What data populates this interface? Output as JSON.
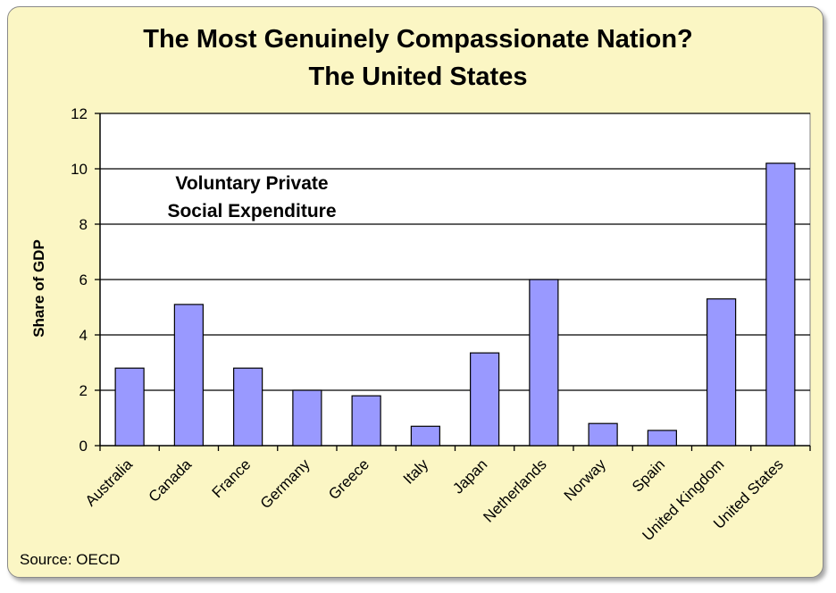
{
  "chart_data": {
    "type": "bar",
    "title": "The Most Genuinely Compassionate Nation?",
    "subtitle": "The United States",
    "annotation": [
      "Voluntary Private",
      "Social Expenditure"
    ],
    "ylabel": "Share of GDP",
    "xlabel": "",
    "ylim": [
      0,
      12
    ],
    "yticks": [
      0,
      2,
      4,
      6,
      8,
      10,
      12
    ],
    "grid": true,
    "categories": [
      "Australia",
      "Canada",
      "France",
      "Germany",
      "Greece",
      "Italy",
      "Japan",
      "Netherlands",
      "Norway",
      "Spain",
      "United Kingdom",
      "United States"
    ],
    "values": [
      2.8,
      5.1,
      2.8,
      2.0,
      1.8,
      0.7,
      3.35,
      6.0,
      0.8,
      0.55,
      5.3,
      10.2
    ],
    "bar_color": "#9999ff",
    "plot_background": "#ffffff",
    "panel_background": "#fbf6c4"
  },
  "source": "Source:  OECD"
}
